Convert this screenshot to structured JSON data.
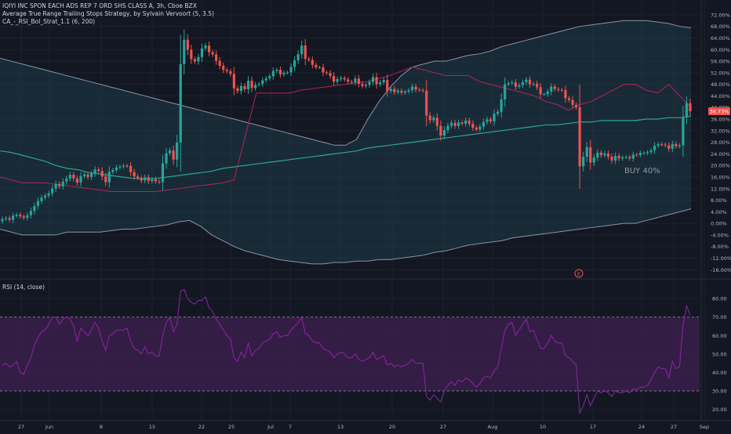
{
  "header": {
    "symbol": "IQIYI INC SPON EACH ADS REP 7 ORD SHS CLASS A, 3h, Cboe BZX",
    "indicator_1": "Average True Range Trailing Stops Strategy, by Sylvain Vervoort (5, 3.5)",
    "indicator_2": "CA_-_RSI_Bol_Strat_1.1 (6, 200)"
  },
  "rsi_panel": {
    "label": "RSI (14, close)"
  },
  "annotations": {
    "buy_label": "BUY 40%",
    "event_marker": "E",
    "last_price_tag": "38.73%"
  },
  "colors": {
    "background": "#131722",
    "band_fill": "#1f3a48",
    "up": "#26a69a",
    "down": "#ef5350",
    "stop_line": "#b2245a",
    "basis_line": "#2fa58d",
    "band_line": "#8a93a6",
    "rsi_line": "#8e24aa",
    "rsi_band_fill": "#3b1f4a",
    "price_tag": "#ef5350"
  },
  "chart_data": [
    {
      "type": "candlestick",
      "y_unit": "percent",
      "ylim": [
        -17,
        73
      ],
      "y_ticks": [
        72,
        68,
        64,
        60,
        56,
        52,
        48,
        44,
        40,
        36,
        32,
        28,
        24,
        20,
        16,
        12,
        8,
        4,
        0,
        -4,
        -8,
        -12,
        -16
      ],
      "y_tick_labels": [
        "72.00%",
        "68.00%",
        "64.00%",
        "60.00%",
        "56.00%",
        "52.00%",
        "48.00%",
        "44.00%",
        "40.00%",
        "36.00%",
        "32.00%",
        "28.00%",
        "24.00%",
        "20.00%",
        "16.00%",
        "12.00%",
        "8.00%",
        "4.00%",
        "0.00%",
        "-4.00%",
        "-8.00%",
        "-12.00%",
        "-16.00%"
      ],
      "x_tick_labels": [
        "27",
        "Jun",
        "8",
        "15",
        "22",
        "25",
        "Jul",
        "7",
        "13",
        "20",
        "27",
        "Aug",
        "10",
        "17",
        "24",
        "27",
        "Sep"
      ],
      "grid": true,
      "series": [
        {
          "kind": "ohlc",
          "close": [
            1.5,
            1.8,
            1.2,
            2.6,
            3.0,
            2.4,
            1.9,
            2.8,
            4.3,
            6.0,
            7.7,
            8.9,
            9.6,
            10.4,
            12.0,
            13.6,
            12.8,
            14.4,
            15.5,
            16.8,
            15.5,
            14.1,
            16.3,
            16.9,
            16.0,
            17.2,
            18.6,
            18.1,
            16.2,
            14.2,
            17.8,
            18.4,
            19.3,
            19.6,
            19.9,
            19.8,
            17.7,
            16.2,
            15.7,
            14.8,
            15.9,
            14.6,
            15.2,
            14.5,
            14.2,
            20.7,
            24.2,
            25.2,
            22.0,
            27.9,
            55.0,
            63.4,
            59.9,
            56.7,
            55.9,
            57.4,
            60.4,
            61.4,
            59.1,
            58.3,
            56.1,
            54.4,
            53.0,
            52.5,
            51.6,
            46.6,
            45.7,
            47.4,
            46.3,
            49.2,
            46.7,
            47.8,
            48.1,
            49.4,
            50.1,
            50.8,
            52.6,
            53.0,
            51.4,
            52.0,
            52.1,
            54.0,
            56.3,
            58.4,
            61.4,
            56.8,
            56.4,
            54.7,
            53.9,
            53.9,
            52.1,
            51.9,
            50.9,
            48.9,
            49.8,
            50.2,
            49.7,
            48.9,
            48.7,
            50.0,
            48.2,
            47.4,
            47.8,
            48.8,
            50.5,
            48.0,
            48.7,
            49.5,
            45.7,
            46.4,
            45.3,
            45.8,
            45.1,
            45.5,
            46.0,
            47.2,
            46.2,
            46.0,
            45.8,
            37.2,
            35.6,
            36.5,
            33.7,
            30.3,
            32.2,
            33.7,
            34.7,
            33.6,
            34.8,
            34.4,
            35.5,
            34.4,
            33.0,
            32.4,
            33.4,
            35.0,
            35.9,
            35.2,
            37.8,
            38.5,
            42.8,
            48.0,
            48.4,
            48.7,
            47.2,
            47.7,
            48.7,
            49.6,
            48.0,
            48.2,
            47.0,
            44.6,
            44.6,
            45.5,
            47.2,
            46.4,
            46.1,
            46.0,
            43.2,
            42.6,
            40.9,
            40.1,
            19.7,
            23.0,
            26.3,
            21.0,
            22.7,
            24.4,
            23.5,
            24.1,
            23.0,
            21.7,
            23.3,
            22.4,
            22.8,
            22.9,
            22.4,
            23.7,
            23.6,
            24.3,
            24.3,
            24.6,
            25.2,
            26.8,
            27.3,
            27.2,
            26.9,
            25.8,
            27.4,
            26.6,
            27.0,
            36.6,
            41.5,
            38.7
          ]
        },
        {
          "kind": "line",
          "role": "upper-band",
          "y": [
            57,
            56,
            55,
            54,
            53,
            52,
            51,
            50,
            49,
            48,
            47,
            46,
            45,
            44,
            43,
            42,
            41,
            40,
            39,
            38,
            37,
            36,
            35,
            34,
            33,
            32,
            31,
            30,
            29,
            28,
            27,
            27,
            29,
            36,
            42,
            47,
            51,
            54,
            55,
            56,
            56,
            57,
            58,
            58.5,
            59.5,
            61,
            62,
            63,
            64,
            65,
            66,
            67,
            68,
            68.5,
            69,
            69.5,
            70,
            70,
            70,
            69.5,
            69,
            68,
            67.5
          ]
        },
        {
          "kind": "line",
          "role": "lower-band",
          "y": [
            -2,
            -3,
            -4,
            -4,
            -4,
            -4,
            -3,
            -3,
            -3,
            -3,
            -2.5,
            -2,
            -2,
            -1.5,
            -1,
            -0.5,
            0.5,
            1,
            -1,
            -4,
            -6,
            -8,
            -9.5,
            -10.5,
            -11.5,
            -12.5,
            -13,
            -13.5,
            -14,
            -14,
            -13.5,
            -13.5,
            -13,
            -13,
            -12.5,
            -12.5,
            -12,
            -11.5,
            -11,
            -10,
            -9.5,
            -8.5,
            -7.5,
            -7,
            -6.5,
            -6,
            -5,
            -4.5,
            -4,
            -3.5,
            -3,
            -2.5,
            -2,
            -1.5,
            -1,
            -0.5,
            0,
            0,
            1,
            2,
            3,
            4,
            5
          ]
        },
        {
          "kind": "line",
          "role": "basis",
          "y": [
            25,
            24.5,
            23.5,
            22.5,
            21.5,
            20,
            19,
            18.5,
            17.5,
            17,
            16.5,
            16,
            15.5,
            15.5,
            15.5,
            16,
            16.5,
            17,
            17.5,
            18,
            19,
            19.5,
            20,
            20.5,
            21,
            21.5,
            22,
            22.5,
            23,
            23.5,
            24,
            24.5,
            25,
            26,
            26.5,
            27,
            27.5,
            28,
            28.5,
            29,
            29.5,
            30,
            30.5,
            31,
            31.5,
            32,
            32.5,
            33,
            33.5,
            34,
            34,
            34.5,
            35,
            35,
            35.5,
            35.5,
            35.5,
            35.5,
            36,
            36,
            36.5,
            36.5,
            37
          ]
        },
        {
          "kind": "line",
          "role": "trailing-stop",
          "y": [
            16,
            15,
            14,
            14,
            14,
            13.5,
            13,
            12.5,
            12,
            11.5,
            11,
            11,
            11,
            11,
            11,
            11.5,
            12,
            12.5,
            13,
            13.5,
            14,
            15,
            30,
            45,
            45,
            45,
            45,
            46,
            46.5,
            47,
            47.5,
            48,
            48.5,
            49,
            50,
            51,
            52.5,
            54,
            53,
            52,
            51,
            51,
            51,
            49,
            48,
            47,
            46,
            45,
            44,
            42,
            41,
            39,
            41,
            42,
            44,
            46,
            48,
            48,
            46,
            45,
            48,
            44,
            40
          ]
        }
      ]
    },
    {
      "type": "line",
      "title": "RSI (14, close)",
      "ylim": [
        16,
        86
      ],
      "y_ticks": [
        80,
        70,
        60,
        50,
        40,
        30,
        20
      ],
      "y_tick_labels": [
        "80.00",
        "70.00",
        "60.00",
        "50.00",
        "40.00",
        "30.00",
        "20.00"
      ],
      "overbought": 70,
      "oversold": 30,
      "series": [
        {
          "kind": "line",
          "y": [
            44,
            45,
            43,
            44,
            46,
            40,
            39,
            44,
            48,
            55,
            59,
            62,
            63,
            66,
            70,
            70,
            66,
            69,
            70,
            69,
            65,
            57,
            64,
            62,
            60,
            63,
            67,
            64,
            57,
            52,
            60,
            61,
            63,
            63,
            63,
            64,
            57,
            53,
            52,
            50,
            54,
            50,
            51,
            49,
            49,
            60,
            67,
            70,
            62,
            66,
            84,
            85,
            80,
            78,
            77,
            79,
            79,
            81,
            75,
            73,
            69,
            66,
            63,
            60,
            58,
            48,
            46,
            51,
            48,
            56,
            49,
            52,
            53,
            56,
            57,
            58,
            61,
            62,
            59,
            60,
            60,
            63,
            65,
            67,
            70,
            61,
            60,
            57,
            56,
            56,
            53,
            52,
            51,
            48,
            50,
            51,
            50,
            48,
            48,
            50,
            47,
            46,
            47,
            48,
            51,
            47,
            48,
            49,
            44,
            45,
            43,
            44,
            43,
            44,
            45,
            47,
            45,
            45,
            45,
            27,
            25,
            28,
            26,
            24,
            30,
            33,
            35,
            33,
            36,
            35,
            37,
            36,
            34,
            32,
            34,
            37,
            38,
            37,
            41,
            43,
            53,
            63,
            66,
            67,
            60,
            63,
            66,
            69,
            62,
            63,
            58,
            53,
            53,
            56,
            60,
            57,
            56,
            56,
            49,
            48,
            46,
            44,
            18,
            22,
            28,
            22,
            26,
            30,
            29,
            30,
            29,
            27,
            30,
            29,
            29,
            30,
            29,
            31,
            31,
            32,
            32,
            33,
            36,
            40,
            43,
            42,
            42,
            37,
            46,
            42,
            43,
            66,
            76,
            71
          ]
        }
      ]
    }
  ]
}
